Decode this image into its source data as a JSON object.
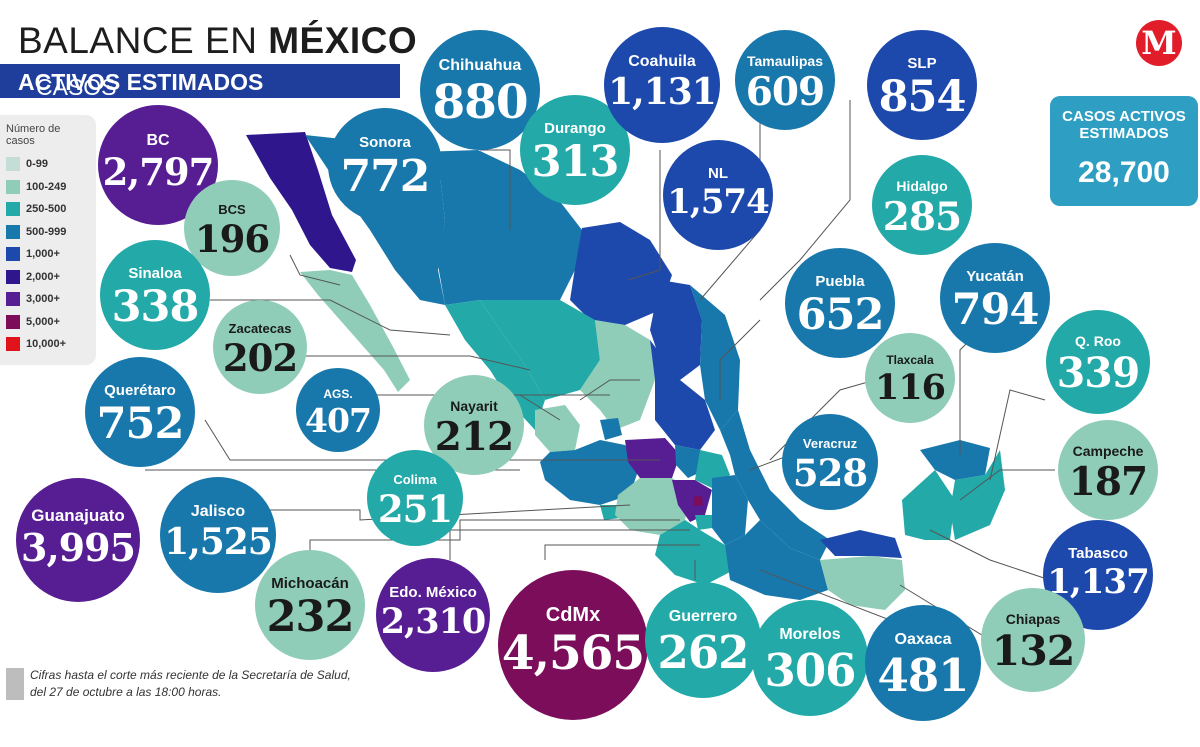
{
  "header": {
    "title_light": "BALANCE EN ",
    "title_bold": "MÉXICO",
    "subtitle_light": "CASOS ",
    "subtitle_bold": "ACTIVOS ESTIMADOS",
    "logo_letter": "M"
  },
  "legend": {
    "title": "Número de casos",
    "items": [
      {
        "label": "0-99",
        "color": "#c4ddd6"
      },
      {
        "label": "100-249",
        "color": "#8fcdb9"
      },
      {
        "label": "250-500",
        "color": "#22a9a8"
      },
      {
        "label": "500-999",
        "color": "#1878ab"
      },
      {
        "label": "1,000+",
        "color": "#1d48ac"
      },
      {
        "label": "2,000+",
        "color": "#2f168c"
      },
      {
        "label": "3,000+",
        "color": "#571d93"
      },
      {
        "label": "5,000+",
        "color": "#7b0d5b"
      },
      {
        "label": "10,000+",
        "color": "#e0121a"
      }
    ]
  },
  "total": {
    "label": "CASOS ACTIVOS ESTIMADOS",
    "value": "28,700"
  },
  "note": {
    "text": "Cifras hasta el corte más reciente de la Secretaría de Salud, del 27 de octubre a las 18:00 horas."
  },
  "states": [
    {
      "name": "BC",
      "value": "2,797",
      "color": "#571d93",
      "text": "dark"
    },
    {
      "name": "BCS",
      "value": "196",
      "color": "#8fcdb9",
      "text": "light"
    },
    {
      "name": "Sonora",
      "value": "772",
      "color": "#1878ab",
      "text": "dark"
    },
    {
      "name": "Chihuahua",
      "value": "880",
      "color": "#1878ab",
      "text": "dark"
    },
    {
      "name": "Durango",
      "value": "313",
      "color": "#22a9a8",
      "text": "dark"
    },
    {
      "name": "Coahuila",
      "value": "1,131",
      "color": "#1d48ac",
      "text": "dark"
    },
    {
      "name": "Tamaulipas",
      "value": "609",
      "color": "#1878ab",
      "text": "dark"
    },
    {
      "name": "NL",
      "value": "1,574",
      "color": "#1d48ac",
      "text": "dark"
    },
    {
      "name": "SLP",
      "value": "854",
      "color": "#1d48ac",
      "text": "dark"
    },
    {
      "name": "Hidalgo",
      "value": "285",
      "color": "#22a9a8",
      "text": "dark"
    },
    {
      "name": "Sinaloa",
      "value": "338",
      "color": "#22a9a8",
      "text": "dark"
    },
    {
      "name": "Zacatecas",
      "value": "202",
      "color": "#8fcdb9",
      "text": "light"
    },
    {
      "name": "Puebla",
      "value": "652",
      "color": "#1878ab",
      "text": "dark"
    },
    {
      "name": "Yucatán",
      "value": "794",
      "color": "#1878ab",
      "text": "dark"
    },
    {
      "name": "Tlaxcala",
      "value": "116",
      "color": "#8fcdb9",
      "text": "light"
    },
    {
      "name": "Q. Roo",
      "value": "339",
      "color": "#22a9a8",
      "text": "dark"
    },
    {
      "name": "Querétaro",
      "value": "752",
      "color": "#1878ab",
      "text": "dark"
    },
    {
      "name": "AGS.",
      "value": "407",
      "color": "#1878ab",
      "text": "dark"
    },
    {
      "name": "Nayarit",
      "value": "212",
      "color": "#8fcdb9",
      "text": "light"
    },
    {
      "name": "Veracruz",
      "value": "528",
      "color": "#1878ab",
      "text": "dark"
    },
    {
      "name": "Campeche",
      "value": "187",
      "color": "#8fcdb9",
      "text": "light"
    },
    {
      "name": "Colima",
      "value": "251",
      "color": "#22a9a8",
      "text": "dark"
    },
    {
      "name": "Guanajuato",
      "value": "3,995",
      "color": "#571d93",
      "text": "dark"
    },
    {
      "name": "Jalisco",
      "value": "1,525",
      "color": "#1878ab",
      "text": "dark"
    },
    {
      "name": "Tabasco",
      "value": "1,137",
      "color": "#1d48ac",
      "text": "dark"
    },
    {
      "name": "Michoacán",
      "value": "232",
      "color": "#8fcdb9",
      "text": "light"
    },
    {
      "name": "Edo. México",
      "value": "2,310",
      "color": "#571d93",
      "text": "dark"
    },
    {
      "name": "CdMx",
      "value": "4,565",
      "color": "#7b0d5b",
      "text": "dark"
    },
    {
      "name": "Guerrero",
      "value": "262",
      "color": "#22a9a8",
      "text": "dark"
    },
    {
      "name": "Morelos",
      "value": "306",
      "color": "#22a9a8",
      "text": "dark"
    },
    {
      "name": "Oaxaca",
      "value": "481",
      "color": "#1878ab",
      "text": "dark"
    },
    {
      "name": "Chiapas",
      "value": "132",
      "color": "#8fcdb9",
      "text": "light"
    }
  ]
}
